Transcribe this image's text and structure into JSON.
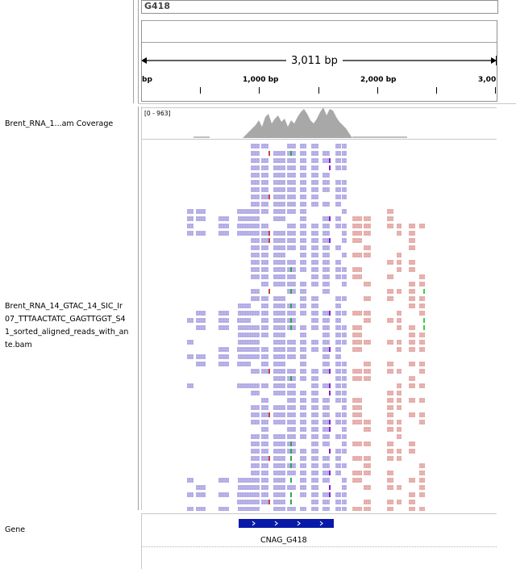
{
  "locus": {
    "chromosome": "G418",
    "span_label": "3,011 bp"
  },
  "ruler": {
    "ticks": [
      {
        "label": "bp"
      },
      {
        "label": "1,000 bp"
      },
      {
        "label": "2,000 bp"
      },
      {
        "label": "3,00"
      }
    ]
  },
  "tracks": {
    "coverage": {
      "name": "Brent_RNA_1...am Coverage",
      "range": "[0 - 963]"
    },
    "alignment": {
      "name_lines": [
        "Brent_RNA_14_GTAC_14_SIC_Ir",
        "07_TTTAACTATC_GAGTTGGT_S4",
        "1_sorted_aligned_reads_with_an",
        "te.bam"
      ]
    },
    "gene": {
      "name": "Gene",
      "feature_label": "CNAG_G418",
      "strand": "+"
    }
  },
  "colors": {
    "read_forward": "#b9b3e8",
    "read_reverse": "#e8b3b0",
    "coverage_fill": "#a8a8a8",
    "gene_feature": "#0a1aa8",
    "mismatch_purple": "#8b1ad2"
  }
}
